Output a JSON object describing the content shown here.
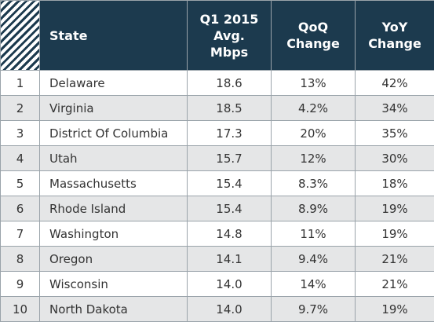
{
  "table": {
    "header": [
      "State",
      "Q1 2015\nAvg.\nMbps",
      "QoQ\nChange",
      "YoY\nChange"
    ],
    "rows": [
      [
        "1",
        "Delaware",
        "18.6",
        "13%",
        "42%"
      ],
      [
        "2",
        "Virginia",
        "18.5",
        "4.2%",
        "34%"
      ],
      [
        "3",
        "District Of Columbia",
        "17.3",
        "20%",
        "35%"
      ],
      [
        "4",
        "Utah",
        "15.7",
        "12%",
        "30%"
      ],
      [
        "5",
        "Massachusetts",
        "15.4",
        "8.3%",
        "18%"
      ],
      [
        "6",
        "Rhode Island",
        "15.4",
        "8.9%",
        "19%"
      ],
      [
        "7",
        "Washington",
        "14.8",
        "11%",
        "19%"
      ],
      [
        "8",
        "Oregon",
        "14.1",
        "9.4%",
        "21%"
      ],
      [
        "9",
        "Wisconsin",
        "14.0",
        "14%",
        "21%"
      ],
      [
        "10",
        "North Dakota",
        "14.0",
        "9.7%",
        "19%"
      ]
    ]
  }
}
